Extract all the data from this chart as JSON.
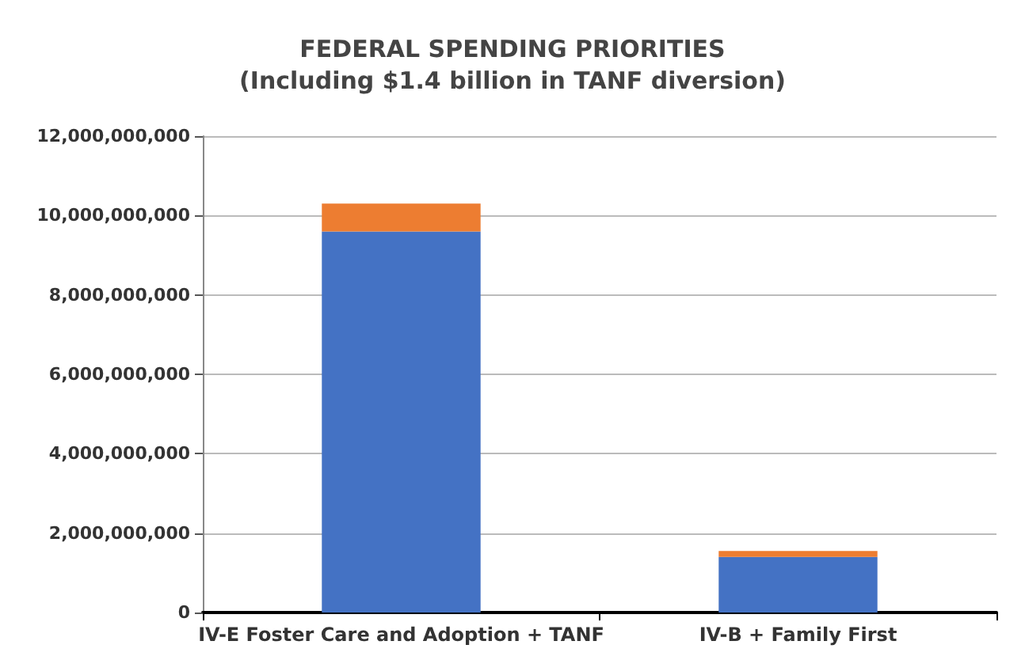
{
  "chart_data": {
    "type": "bar",
    "title": "FEDERAL SPENDING PRIORITIES\n(Including $1.4 billion in TANF diversion)",
    "categories": [
      "IV-E Foster Care and Adoption + TANF",
      "IV-B + Family First"
    ],
    "stacked": true,
    "series": [
      {
        "color": "#4472c4",
        "values": [
          9600000000,
          1400000000
        ]
      },
      {
        "color": "#ed7d31",
        "values": [
          700000000,
          150000000
        ]
      }
    ],
    "ylim": [
      0,
      12000000000
    ],
    "yticks": [
      0,
      {
        "value": 2000000000,
        "label": "2,000,000,000"
      },
      {
        "value": 4000000000,
        "label": "4,000,000,000"
      },
      {
        "value": 6000000000,
        "label": "6,000,000,000"
      },
      {
        "value": 8000000000,
        "label": "8,000,000,000"
      },
      {
        "value": 10000000000,
        "label": "10,000,000,000"
      },
      {
        "value": 12000000000,
        "label": "12,000,000,000"
      }
    ],
    "grid": "y"
  }
}
